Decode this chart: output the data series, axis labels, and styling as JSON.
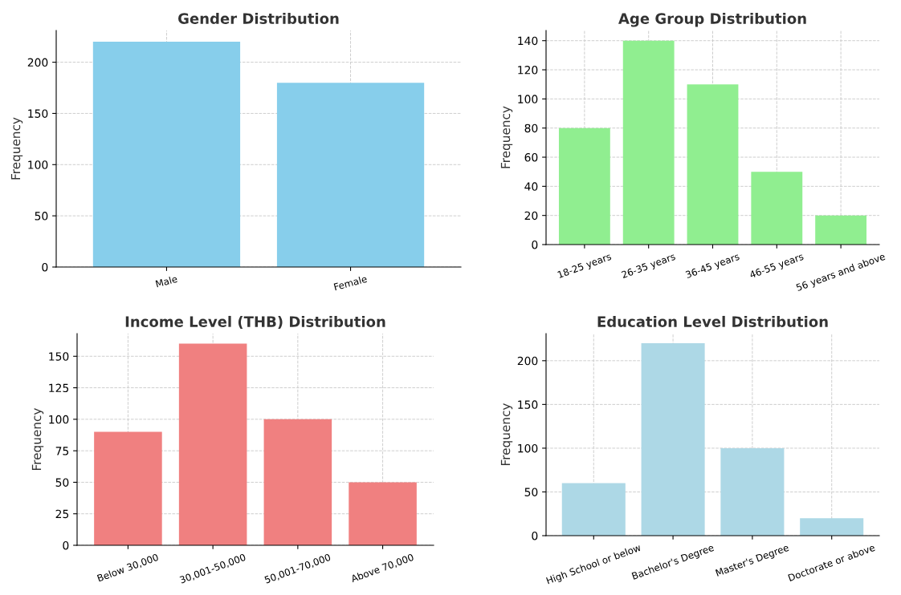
{
  "chart_data": [
    {
      "type": "bar",
      "title": "Gender Distribution",
      "ylabel": "Frequency",
      "categories": [
        "Male",
        "Female"
      ],
      "values": [
        220,
        180
      ],
      "color": "#87ceeb",
      "ylim": [
        0,
        231
      ],
      "yticks": [
        0,
        50,
        100,
        150,
        200
      ],
      "grid": true
    },
    {
      "type": "bar",
      "title": "Age Group Distribution",
      "ylabel": "Frequency",
      "categories": [
        "18-25 years",
        "26-35 years",
        "36-45 years",
        "46-55 years",
        "56 years and above"
      ],
      "values": [
        80,
        140,
        110,
        50,
        20
      ],
      "color": "#90ee90",
      "ylim": [
        0,
        147
      ],
      "yticks": [
        0,
        20,
        40,
        60,
        80,
        100,
        120,
        140
      ],
      "grid": true
    },
    {
      "type": "bar",
      "title": "Income Level (THB) Distribution",
      "ylabel": "Frequency",
      "categories": [
        "Below 30,000",
        "30,001-50,000",
        "50,001-70,000",
        "Above 70,000"
      ],
      "values": [
        90,
        160,
        100,
        50
      ],
      "color": "#f08080",
      "ylim": [
        0,
        168
      ],
      "yticks": [
        0,
        25,
        50,
        75,
        100,
        125,
        150
      ],
      "grid": true
    },
    {
      "type": "bar",
      "title": "Education Level Distribution",
      "ylabel": "Frequency",
      "categories": [
        "High School or below",
        "Bachelor's Degree",
        "Master's Degree",
        "Doctorate or above"
      ],
      "values": [
        60,
        220,
        100,
        20
      ],
      "color": "#add8e6",
      "ylim": [
        0,
        231
      ],
      "yticks": [
        0,
        50,
        100,
        150,
        200
      ],
      "grid": true
    }
  ]
}
